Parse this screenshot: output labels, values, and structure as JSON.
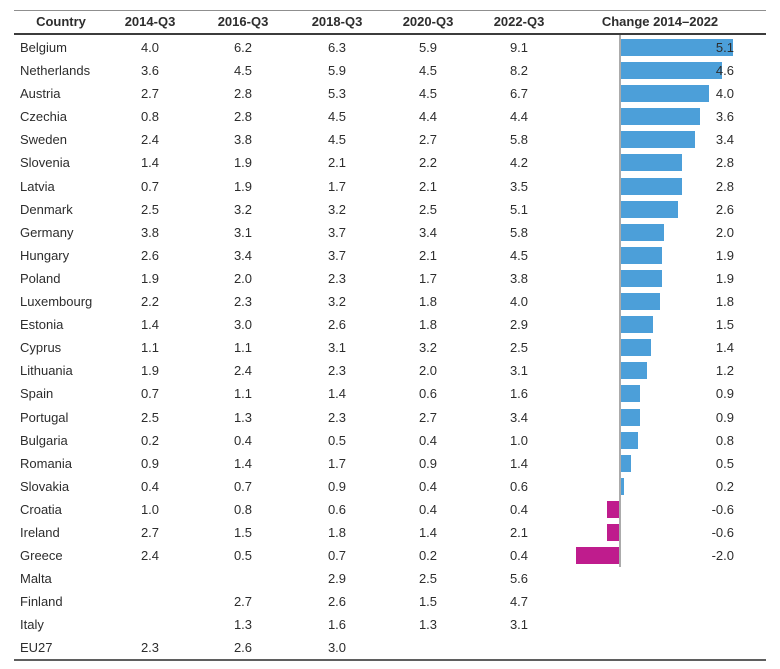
{
  "chart": {
    "positive_color": "#4c9fd9",
    "negative_color": "#bf1c8d",
    "axis_line_color": "#ababab"
  },
  "chart_data": {
    "type": "table",
    "columns": [
      "Country",
      "2014-Q3",
      "2016-Q3",
      "2018-Q3",
      "2020-Q3",
      "2022-Q3",
      "Change 2014–2022"
    ],
    "bar_column": {
      "label": "Change 2014–2022",
      "min": -2.0,
      "max": 5.1,
      "orientation": "horizontal",
      "zero_axis_visible": true
    },
    "rows": [
      {
        "country": "Belgium",
        "values": [
          "4.0",
          "6.2",
          "6.3",
          "5.9",
          "9.1"
        ],
        "change": 5.1,
        "change_label": "5.1"
      },
      {
        "country": "Netherlands",
        "values": [
          "3.6",
          "4.5",
          "5.9",
          "4.5",
          "8.2"
        ],
        "change": 4.6,
        "change_label": "4.6"
      },
      {
        "country": "Austria",
        "values": [
          "2.7",
          "2.8",
          "5.3",
          "4.5",
          "6.7"
        ],
        "change": 4.0,
        "change_label": "4.0"
      },
      {
        "country": "Czechia",
        "values": [
          "0.8",
          "2.8",
          "4.5",
          "4.4",
          "4.4"
        ],
        "change": 3.6,
        "change_label": "3.6"
      },
      {
        "country": "Sweden",
        "values": [
          "2.4",
          "3.8",
          "4.5",
          "2.7",
          "5.8"
        ],
        "change": 3.4,
        "change_label": "3.4"
      },
      {
        "country": "Slovenia",
        "values": [
          "1.4",
          "1.9",
          "2.1",
          "2.2",
          "4.2"
        ],
        "change": 2.8,
        "change_label": "2.8"
      },
      {
        "country": "Latvia",
        "values": [
          "0.7",
          "1.9",
          "1.7",
          "2.1",
          "3.5"
        ],
        "change": 2.8,
        "change_label": "2.8"
      },
      {
        "country": "Denmark",
        "values": [
          "2.5",
          "3.2",
          "3.2",
          "2.5",
          "5.1"
        ],
        "change": 2.6,
        "change_label": "2.6"
      },
      {
        "country": "Germany",
        "values": [
          "3.8",
          "3.1",
          "3.7",
          "3.4",
          "5.8"
        ],
        "change": 2.0,
        "change_label": "2.0"
      },
      {
        "country": "Hungary",
        "values": [
          "2.6",
          "3.4",
          "3.7",
          "2.1",
          "4.5"
        ],
        "change": 1.9,
        "change_label": "1.9"
      },
      {
        "country": "Poland",
        "values": [
          "1.9",
          "2.0",
          "2.3",
          "1.7",
          "3.8"
        ],
        "change": 1.9,
        "change_label": "1.9"
      },
      {
        "country": "Luxembourg",
        "values": [
          "2.2",
          "2.3",
          "3.2",
          "1.8",
          "4.0"
        ],
        "change": 1.8,
        "change_label": "1.8"
      },
      {
        "country": "Estonia",
        "values": [
          "1.4",
          "3.0",
          "2.6",
          "1.8",
          "2.9"
        ],
        "change": 1.5,
        "change_label": "1.5"
      },
      {
        "country": "Cyprus",
        "values": [
          "1.1",
          "1.1",
          "3.1",
          "3.2",
          "2.5"
        ],
        "change": 1.4,
        "change_label": "1.4"
      },
      {
        "country": "Lithuania",
        "values": [
          "1.9",
          "2.4",
          "2.3",
          "2.0",
          "3.1"
        ],
        "change": 1.2,
        "change_label": "1.2"
      },
      {
        "country": "Spain",
        "values": [
          "0.7",
          "1.1",
          "1.4",
          "0.6",
          "1.6"
        ],
        "change": 0.9,
        "change_label": "0.9"
      },
      {
        "country": "Portugal",
        "values": [
          "2.5",
          "1.3",
          "2.3",
          "2.7",
          "3.4"
        ],
        "change": 0.9,
        "change_label": "0.9"
      },
      {
        "country": "Bulgaria",
        "values": [
          "0.2",
          "0.4",
          "0.5",
          "0.4",
          "1.0"
        ],
        "change": 0.8,
        "change_label": "0.8"
      },
      {
        "country": "Romania",
        "values": [
          "0.9",
          "1.4",
          "1.7",
          "0.9",
          "1.4"
        ],
        "change": 0.5,
        "change_label": "0.5"
      },
      {
        "country": "Slovakia",
        "values": [
          "0.4",
          "0.7",
          "0.9",
          "0.4",
          "0.6"
        ],
        "change": 0.2,
        "change_label": "0.2"
      },
      {
        "country": "Croatia",
        "values": [
          "1.0",
          "0.8",
          "0.6",
          "0.4",
          "0.4"
        ],
        "change": -0.6,
        "change_label": "-0.6"
      },
      {
        "country": "Ireland",
        "values": [
          "2.7",
          "1.5",
          "1.8",
          "1.4",
          "2.1"
        ],
        "change": -0.6,
        "change_label": "-0.6"
      },
      {
        "country": "Greece",
        "values": [
          "2.4",
          "0.5",
          "0.7",
          "0.2",
          "0.4"
        ],
        "change": -2.0,
        "change_label": "-2.0"
      },
      {
        "country": "Malta",
        "values": [
          "",
          "",
          "2.9",
          "2.5",
          "5.6"
        ],
        "change": null,
        "change_label": ""
      },
      {
        "country": "Finland",
        "values": [
          "",
          "2.7",
          "2.6",
          "1.5",
          "4.7"
        ],
        "change": null,
        "change_label": ""
      },
      {
        "country": "Italy",
        "values": [
          "",
          "1.3",
          "1.6",
          "1.3",
          "3.1"
        ],
        "change": null,
        "change_label": ""
      },
      {
        "country": "EU27",
        "values": [
          "2.3",
          "2.6",
          "3.0",
          "",
          ""
        ],
        "change": null,
        "change_label": ""
      }
    ]
  }
}
